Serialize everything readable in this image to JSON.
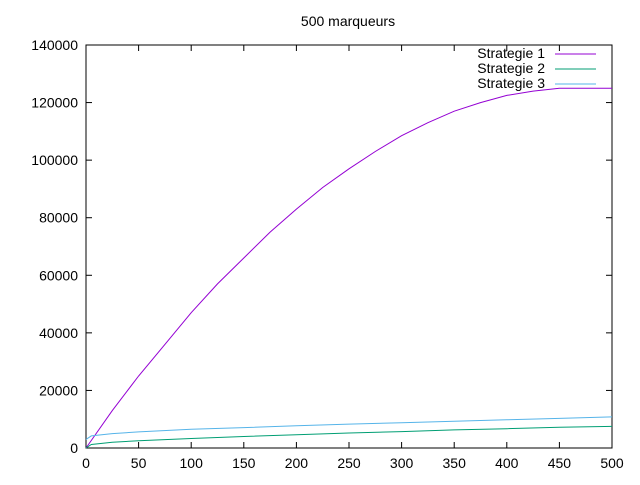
{
  "chart_data": {
    "type": "line",
    "title": "500 marqueurs",
    "xlabel": "",
    "ylabel": "",
    "xlim": [
      0,
      500
    ],
    "ylim": [
      0,
      140000
    ],
    "xticks": [
      0,
      50,
      100,
      150,
      200,
      250,
      300,
      350,
      400,
      450,
      500
    ],
    "yticks": [
      0,
      20000,
      40000,
      60000,
      80000,
      100000,
      120000,
      140000
    ],
    "grid": false,
    "legend_position": "top-right",
    "series": [
      {
        "name": "Strategie 1",
        "color": "#9400d3",
        "x": [
          0,
          25,
          50,
          75,
          100,
          125,
          150,
          175,
          200,
          225,
          250,
          275,
          300,
          325,
          350,
          375,
          400,
          425,
          450,
          475,
          500
        ],
        "y": [
          0,
          13000,
          25000,
          36000,
          47000,
          57000,
          66000,
          75000,
          83000,
          90500,
          97000,
          103000,
          108500,
          113000,
          117000,
          120000,
          122500,
          124000,
          125000,
          125000,
          125000
        ]
      },
      {
        "name": "Strategie 2",
        "color": "#009e73",
        "x": [
          0,
          5,
          25,
          50,
          100,
          150,
          200,
          250,
          300,
          350,
          400,
          450,
          500
        ],
        "y": [
          0,
          1200,
          2000,
          2500,
          3300,
          4000,
          4600,
          5200,
          5700,
          6300,
          6700,
          7200,
          7500
        ]
      },
      {
        "name": "Strategie 3",
        "color": "#56b4e9",
        "x": [
          0,
          5,
          25,
          50,
          100,
          150,
          200,
          250,
          300,
          350,
          400,
          450,
          500
        ],
        "y": [
          3000,
          4200,
          5000,
          5600,
          6500,
          7100,
          7700,
          8300,
          8800,
          9300,
          9800,
          10300,
          10800
        ]
      }
    ]
  }
}
